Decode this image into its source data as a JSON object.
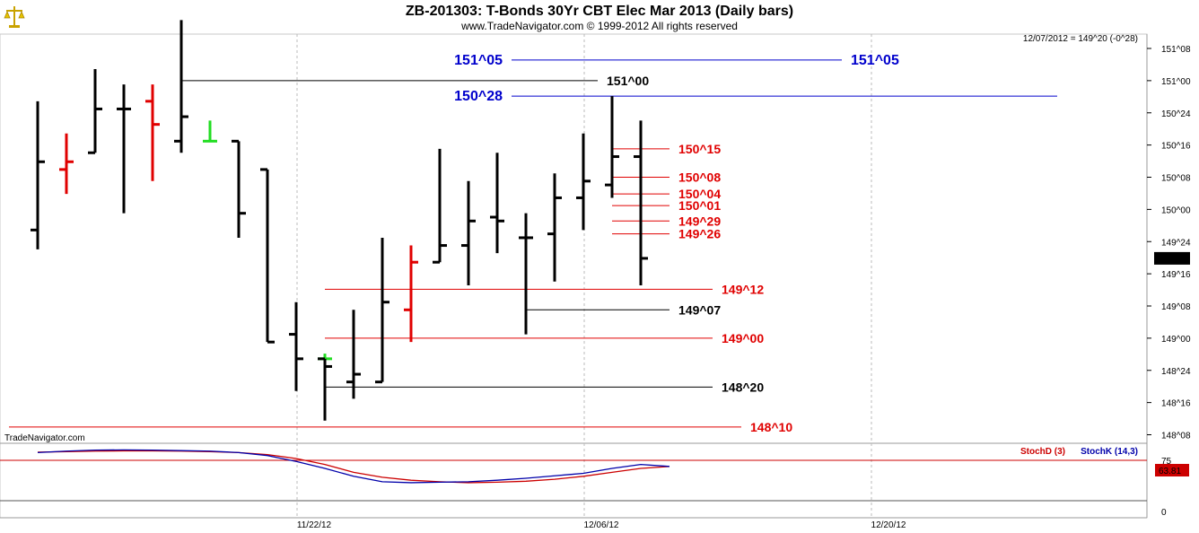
{
  "header": {
    "title": "ZB-201303:  T-Bonds 30Yr CBT Elec Mar 2013  (Daily bars)",
    "copyright": "www.TradeNavigator.com © 1999-2012 All rights reserved",
    "info": "12/07/2012 = 149^20 (-0^28)",
    "watermark": "TradeNavigator.com",
    "logo_icon": "scales-logo-icon"
  },
  "chart_data": [
    {
      "type": "ohlc",
      "title": "ZB-201303:  T-Bonds 30Yr CBT Elec Mar 2013  (Daily bars)",
      "y_unit": "32nds",
      "ylim": [
        148.1,
        151.3
      ],
      "y_ticks": [
        {
          "value": 151.25,
          "label": "151^08"
        },
        {
          "value": 151.0,
          "label": "151^00"
        },
        {
          "value": 150.75,
          "label": "150^24"
        },
        {
          "value": 150.5,
          "label": "150^16"
        },
        {
          "value": 150.25,
          "label": "150^08"
        },
        {
          "value": 150.0,
          "label": "150^00"
        },
        {
          "value": 149.75,
          "label": "149^24"
        },
        {
          "value": 149.5,
          "label": "149^16"
        },
        {
          "value": 149.25,
          "label": "149^08"
        },
        {
          "value": 149.0,
          "label": "149^00"
        },
        {
          "value": 148.75,
          "label": "148^24"
        },
        {
          "value": 148.5,
          "label": "148^16"
        },
        {
          "value": 148.25,
          "label": "148^08"
        }
      ],
      "x_labels": [
        {
          "index": 9,
          "label": "11/22/12"
        },
        {
          "index": 19,
          "label": "12/06/12"
        },
        {
          "index": 29,
          "label": "12/20/12"
        }
      ],
      "last_value_label": "149^20",
      "colors": {
        "up": "#22dd22",
        "down": "#000000",
        "reversal": "#e00000",
        "level_red": "#e00000",
        "level_black": "#000000",
        "level_blue": "#0000cc"
      },
      "bars": [
        {
          "i": 0,
          "open": 149.84,
          "high": 150.84,
          "low": 149.69,
          "close": 150.37,
          "color": "black"
        },
        {
          "i": 1,
          "open": 150.31,
          "high": 150.59,
          "low": 150.12,
          "close": 150.37,
          "color": "red"
        },
        {
          "i": 2,
          "open": 150.44,
          "high": 151.09,
          "low": 150.44,
          "close": 150.78,
          "color": "black"
        },
        {
          "i": 3,
          "open": 150.78,
          "high": 150.97,
          "low": 149.97,
          "close": 150.78,
          "color": "black"
        },
        {
          "i": 4,
          "open": 150.84,
          "high": 150.97,
          "low": 150.22,
          "close": 150.66,
          "color": "red"
        },
        {
          "i": 5,
          "open": 150.53,
          "high": 151.47,
          "low": 150.44,
          "close": 150.72,
          "color": "black"
        },
        {
          "i": 6,
          "open": 150.53,
          "high": 150.69,
          "low": 150.53,
          "close": 150.53,
          "color": "green"
        },
        {
          "i": 7,
          "open": 150.53,
          "high": 150.53,
          "low": 149.78,
          "close": 149.97,
          "color": "black"
        },
        {
          "i": 8,
          "open": 150.31,
          "high": 150.31,
          "low": 148.97,
          "close": 148.97,
          "color": "black"
        },
        {
          "i": 9,
          "open": 149.03,
          "high": 149.28,
          "low": 148.59,
          "close": 148.84,
          "color": "black"
        },
        {
          "i": 10,
          "open": 148.84,
          "high": 148.88,
          "low": 148.84,
          "close": 148.84,
          "color": "green"
        },
        {
          "i": 10,
          "open": 148.84,
          "high": 148.84,
          "low": 148.36,
          "close": 148.78,
          "color": "black"
        },
        {
          "i": 11,
          "open": 148.66,
          "high": 149.22,
          "low": 148.53,
          "close": 148.72,
          "color": "black"
        },
        {
          "i": 12,
          "open": 148.66,
          "high": 149.78,
          "low": 148.66,
          "close": 149.28,
          "color": "black"
        },
        {
          "i": 13,
          "open": 149.22,
          "high": 149.72,
          "low": 148.97,
          "close": 149.59,
          "color": "red"
        },
        {
          "i": 14,
          "open": 149.59,
          "high": 150.47,
          "low": 149.59,
          "close": 149.72,
          "color": "black"
        },
        {
          "i": 15,
          "open": 149.72,
          "high": 150.22,
          "low": 149.41,
          "close": 149.91,
          "color": "black"
        },
        {
          "i": 16,
          "open": 149.94,
          "high": 150.44,
          "low": 149.66,
          "close": 149.91,
          "color": "black"
        },
        {
          "i": 17,
          "open": 149.78,
          "high": 149.97,
          "low": 149.03,
          "close": 149.78,
          "color": "black"
        },
        {
          "i": 18,
          "open": 149.81,
          "high": 150.28,
          "low": 149.44,
          "close": 150.09,
          "color": "black"
        },
        {
          "i": 19,
          "open": 150.09,
          "high": 150.59,
          "low": 149.84,
          "close": 150.22,
          "color": "black"
        },
        {
          "i": 20,
          "open": 150.19,
          "high": 150.88,
          "low": 150.09,
          "close": 150.41,
          "color": "black"
        },
        {
          "i": 21,
          "open": 150.41,
          "high": 150.69,
          "low": 149.41,
          "close": 149.62,
          "color": "black"
        }
      ],
      "levels": [
        {
          "value": 151.16,
          "label": "151^05",
          "color": "blue",
          "start_index": 16.5,
          "end_index": 28,
          "label_left": true,
          "label_right": true
        },
        {
          "value": 151.0,
          "label": "151^00",
          "color": "black",
          "start_index": 5,
          "end_index": 19.5,
          "label_right": true
        },
        {
          "value": 150.88,
          "label": "150^28",
          "color": "blue",
          "start_index": 16.5,
          "end_index": 35.5,
          "label_left": true
        },
        {
          "value": 150.47,
          "label": "150^15",
          "color": "red",
          "start_index": 20,
          "end_index": 22,
          "label_right": true
        },
        {
          "value": 150.25,
          "label": "150^08",
          "color": "red",
          "start_index": 20,
          "end_index": 22,
          "label_right": true
        },
        {
          "value": 150.12,
          "label": "150^04",
          "color": "red",
          "start_index": 20,
          "end_index": 22,
          "label_right": true
        },
        {
          "value": 150.03,
          "label": "150^01",
          "color": "red",
          "start_index": 20,
          "end_index": 22,
          "label_right": true
        },
        {
          "value": 149.91,
          "label": "149^29",
          "color": "red",
          "start_index": 20,
          "end_index": 22,
          "label_right": true
        },
        {
          "value": 149.81,
          "label": "149^26",
          "color": "red",
          "start_index": 20,
          "end_index": 22,
          "label_right": true
        },
        {
          "value": 149.38,
          "label": "149^12",
          "color": "red",
          "start_index": 10,
          "end_index": 23.5,
          "label_right": true
        },
        {
          "value": 149.22,
          "label": "149^07",
          "color": "black",
          "start_index": 17,
          "end_index": 22,
          "label_right": true
        },
        {
          "value": 149.0,
          "label": "149^00",
          "color": "red",
          "start_index": 10,
          "end_index": 23.5,
          "label_right": true
        },
        {
          "value": 148.62,
          "label": "148^20",
          "color": "black",
          "start_index": 10,
          "end_index": 23.5,
          "label_right": true
        },
        {
          "value": 148.31,
          "label": "148^10",
          "color": "red",
          "start_index": -1,
          "end_index": 24.5,
          "label_right": true
        }
      ]
    },
    {
      "type": "line",
      "title": "",
      "ylim": [
        0,
        100
      ],
      "y_ticks": [
        {
          "value": 75,
          "label": "75"
        },
        {
          "value": 0,
          "label": "0"
        }
      ],
      "last_value_label": "63.81",
      "series": [
        {
          "name": "StochD (3)",
          "color": "#cc0000",
          "values": [
            93,
            94,
            95,
            95.5,
            95.5,
            95,
            94,
            92,
            88,
            80,
            68,
            52,
            42,
            36,
            33,
            31,
            32,
            34,
            38,
            44,
            52,
            60,
            63.81
          ]
        },
        {
          "name": "StochK (14,3)",
          "color": "#0000aa",
          "values": [
            92,
            95,
            97,
            97.5,
            97,
            96,
            95,
            92,
            86,
            74,
            60,
            44,
            33,
            31,
            32,
            33,
            36,
            40,
            45,
            50,
            60,
            68,
            64
          ]
        }
      ],
      "grid": false,
      "legend": "top-right"
    }
  ]
}
